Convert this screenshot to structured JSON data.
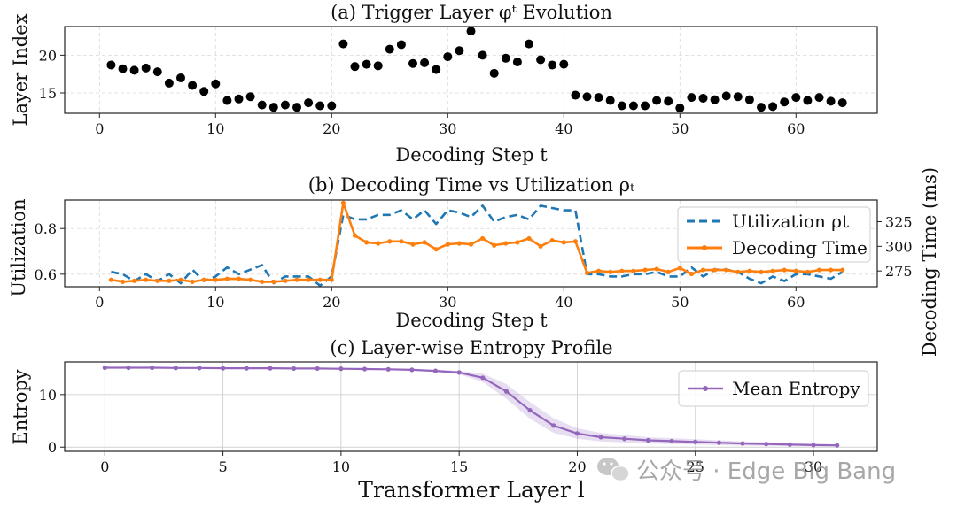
{
  "watermark": {
    "text": "公众号 · Edge Big Bang"
  },
  "chart_data": [
    {
      "id": "a",
      "type": "line",
      "title": "(a) Trigger Layer φᵗ Evolution",
      "xlabel": "Decoding Step t",
      "ylabel": "Layer Index",
      "xlim": [
        -3,
        67
      ],
      "ylim": [
        12.3,
        23.8
      ],
      "xticks": [
        0,
        10,
        20,
        30,
        40,
        50,
        60
      ],
      "yticks": [
        15,
        20
      ],
      "grid": true,
      "color": "#1f77b4",
      "series": [
        {
          "name": "Trigger Layer",
          "x": [
            1,
            2,
            3,
            4,
            5,
            6,
            7,
            8,
            9,
            10,
            11,
            12,
            13,
            14,
            15,
            16,
            17,
            18,
            19,
            20,
            21,
            22,
            23,
            24,
            25,
            26,
            27,
            28,
            29,
            30,
            31,
            32,
            33,
            34,
            35,
            36,
            37,
            38,
            39,
            40,
            41,
            42,
            43,
            44,
            45,
            46,
            47,
            48,
            49,
            50,
            51,
            52,
            53,
            54,
            55,
            56,
            57,
            58,
            59,
            60,
            61,
            62,
            63,
            64
          ],
          "values": [
            18.7,
            18.2,
            18.0,
            18.3,
            17.8,
            16.3,
            17.0,
            16.0,
            15.2,
            16.2,
            14.0,
            14.2,
            14.5,
            13.4,
            13.1,
            13.4,
            13.1,
            13.7,
            13.3,
            13.3,
            21.5,
            18.5,
            18.8,
            18.6,
            20.8,
            21.4,
            18.9,
            19.0,
            18.1,
            19.8,
            20.6,
            23.2,
            20.0,
            17.6,
            19.6,
            19.1,
            21.5,
            19.4,
            18.7,
            18.8,
            14.7,
            14.5,
            14.4,
            14.0,
            13.3,
            13.3,
            13.3,
            14.0,
            13.9,
            13.0,
            14.4,
            14.3,
            14.1,
            14.6,
            14.5,
            14.1,
            13.1,
            13.2,
            13.8,
            14.4,
            14.0,
            14.4,
            13.9,
            13.7
          ]
        }
      ]
    },
    {
      "id": "b",
      "type": "line",
      "title": "(b) Decoding Time vs Utilization ρₜ",
      "xlabel": "Decoding Step t",
      "ylabel": "Utilization",
      "ylabel_right": "Decoding Time (ms)",
      "xlim": [
        -3,
        67
      ],
      "ylim": [
        0.545,
        0.925
      ],
      "ylim_right": [
        259,
        347
      ],
      "xticks": [
        0,
        10,
        20,
        30,
        40,
        50,
        60
      ],
      "yticks": [
        0.6,
        0.8
      ],
      "yticks_right": [
        275,
        300,
        325
      ],
      "grid": true,
      "legend": [
        "Utilization ρt",
        "Decoding Time"
      ],
      "series": [
        {
          "name": "Utilization ρt",
          "axis": "left",
          "color": "#1f77b4",
          "style": "dashed",
          "x": [
            1,
            2,
            3,
            4,
            5,
            6,
            7,
            8,
            9,
            10,
            11,
            12,
            13,
            14,
            15,
            16,
            17,
            18,
            19,
            20,
            21,
            22,
            23,
            24,
            25,
            26,
            27,
            28,
            29,
            30,
            31,
            32,
            33,
            34,
            35,
            36,
            37,
            38,
            39,
            40,
            41,
            42,
            43,
            44,
            45,
            46,
            47,
            48,
            49,
            50,
            51,
            52,
            53,
            54,
            55,
            56,
            57,
            58,
            59,
            60,
            61,
            62,
            63,
            64
          ],
          "values": [
            0.61,
            0.6,
            0.57,
            0.6,
            0.57,
            0.6,
            0.56,
            0.62,
            0.57,
            0.59,
            0.63,
            0.6,
            0.62,
            0.64,
            0.56,
            0.59,
            0.59,
            0.59,
            0.55,
            0.59,
            0.86,
            0.84,
            0.84,
            0.86,
            0.86,
            0.88,
            0.84,
            0.88,
            0.82,
            0.88,
            0.87,
            0.85,
            0.9,
            0.83,
            0.85,
            0.86,
            0.84,
            0.9,
            0.89,
            0.88,
            0.88,
            0.6,
            0.6,
            0.59,
            0.59,
            0.6,
            0.6,
            0.61,
            0.59,
            0.59,
            0.63,
            0.59,
            0.62,
            0.62,
            0.61,
            0.58,
            0.56,
            0.59,
            0.57,
            0.6,
            0.6,
            0.59,
            0.58,
            0.61
          ]
        },
        {
          "name": "Decoding Time",
          "axis": "right",
          "color": "#ff7f0e",
          "style": "solid",
          "x": [
            1,
            2,
            3,
            4,
            5,
            6,
            7,
            8,
            9,
            10,
            11,
            12,
            13,
            14,
            15,
            16,
            17,
            18,
            19,
            20,
            21,
            22,
            23,
            24,
            25,
            26,
            27,
            28,
            29,
            30,
            31,
            32,
            33,
            34,
            35,
            36,
            37,
            38,
            39,
            40,
            41,
            42,
            43,
            44,
            45,
            46,
            47,
            48,
            49,
            50,
            51,
            52,
            53,
            54,
            55,
            56,
            57,
            58,
            59,
            60,
            61,
            62,
            63,
            64
          ],
          "values": [
            266,
            264,
            265,
            266,
            265,
            265,
            266,
            264,
            266,
            266,
            267,
            267,
            266,
            264,
            264,
            265,
            266,
            266,
            266,
            266,
            344,
            311,
            304,
            303,
            305,
            305,
            302,
            304,
            297,
            302,
            303,
            302,
            308,
            301,
            303,
            304,
            308,
            300,
            306,
            304,
            305,
            273,
            275,
            274,
            275,
            275,
            276,
            277,
            274,
            278,
            272,
            276,
            276,
            276,
            274,
            275,
            274,
            275,
            276,
            275,
            274,
            276,
            276,
            276
          ]
        }
      ]
    },
    {
      "id": "c",
      "type": "line",
      "title": "(c) Layer-wise Entropy Profile",
      "xlabel": "Transformer Layer l",
      "ylabel": "Entropy",
      "xlim": [
        -1.7,
        32.7
      ],
      "ylim": [
        -0.8,
        16.2
      ],
      "xticks": [
        0,
        5,
        10,
        15,
        20,
        25,
        30
      ],
      "yticks": [
        0,
        10
      ],
      "grid": true,
      "legend": [
        "Mean Entropy"
      ],
      "series": [
        {
          "name": "Mean Entropy",
          "color": "#9467bd",
          "x": [
            0,
            1,
            2,
            3,
            4,
            5,
            6,
            7,
            8,
            9,
            10,
            11,
            12,
            13,
            14,
            15,
            16,
            17,
            18,
            19,
            20,
            21,
            22,
            23,
            24,
            25,
            26,
            27,
            28,
            29,
            30,
            31
          ],
          "values": [
            15.1,
            15.1,
            15.1,
            15.05,
            15.05,
            15.0,
            15.0,
            15.0,
            14.95,
            14.95,
            14.9,
            14.85,
            14.8,
            14.7,
            14.5,
            14.2,
            13.2,
            10.6,
            7.0,
            4.1,
            2.6,
            1.9,
            1.6,
            1.3,
            1.15,
            1.0,
            0.85,
            0.7,
            0.6,
            0.5,
            0.4,
            0.35
          ],
          "spread": [
            0.1,
            0.1,
            0.1,
            0.1,
            0.1,
            0.1,
            0.1,
            0.1,
            0.1,
            0.1,
            0.1,
            0.1,
            0.12,
            0.15,
            0.2,
            0.3,
            0.8,
            1.4,
            1.6,
            1.4,
            1.0,
            0.8,
            0.7,
            0.6,
            0.55,
            0.5,
            0.45,
            0.4,
            0.35,
            0.3,
            0.25,
            0.2
          ]
        }
      ]
    }
  ]
}
